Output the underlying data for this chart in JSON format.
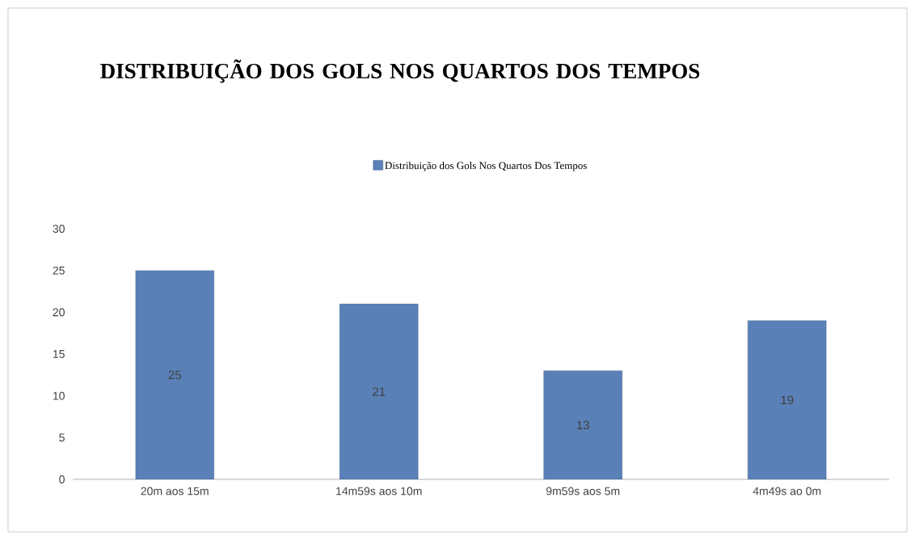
{
  "chart_data": {
    "type": "bar",
    "title": "DISTRIBUIÇÃO DOS GOLS  NOS QUARTOS DOS  TEMPOS",
    "categories": [
      "20m aos 15m",
      "14m59s aos 10m",
      "9m59s aos 5m",
      "4m49s ao 0m"
    ],
    "series": [
      {
        "name": "Distribuição dos Gols Nos Quartos Dos Tempos",
        "color": "#5a80b8",
        "values": [
          25,
          21,
          13,
          19
        ]
      }
    ],
    "ylim": [
      0,
      30
    ],
    "yticks": [
      0,
      5,
      10,
      15,
      20,
      25,
      30
    ],
    "data_labels": true,
    "legend": "top",
    "grid": false
  }
}
